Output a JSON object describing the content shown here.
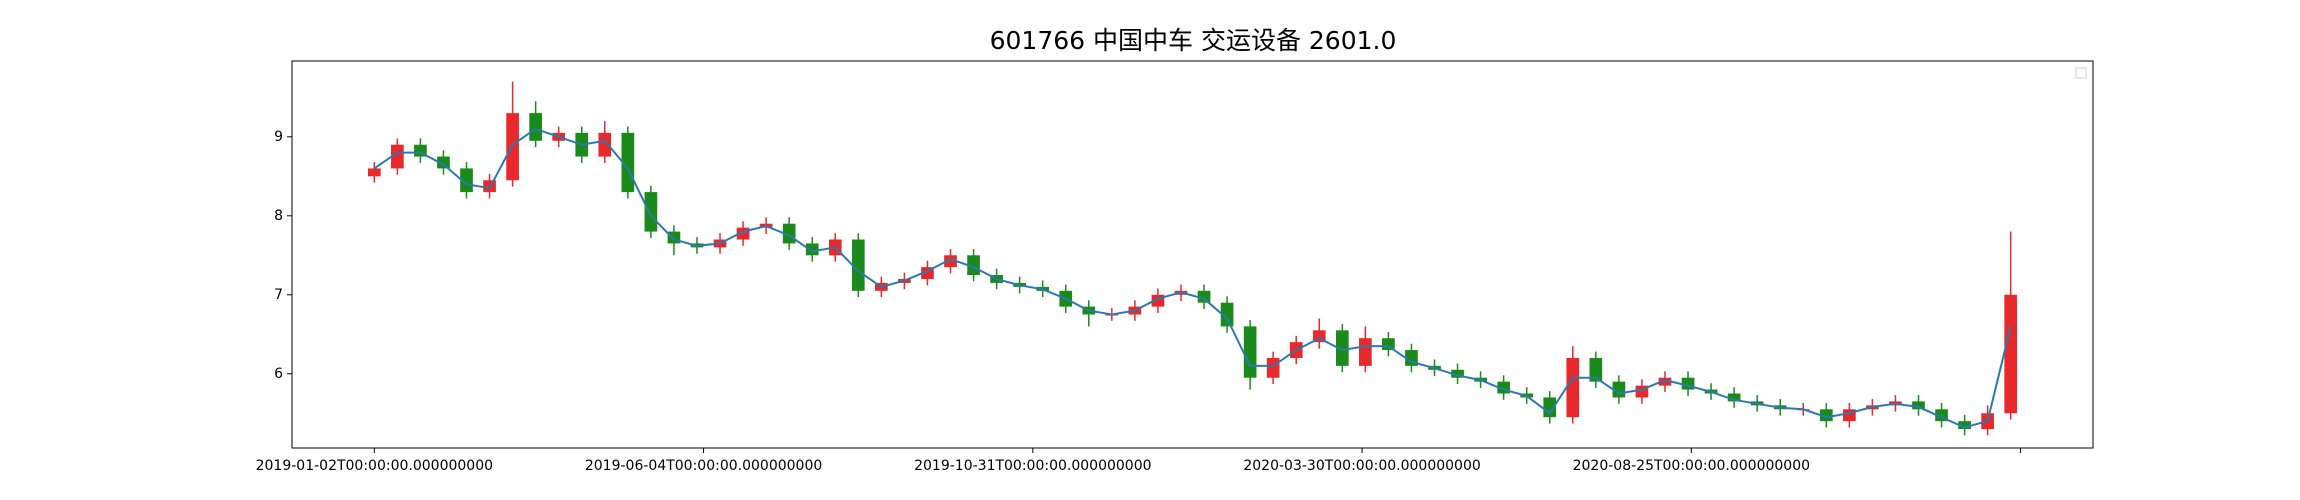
{
  "chart_data": {
    "type": "candlestick",
    "title": "601766 中国中车 交运设备 2601.0",
    "up_color": "#e8282b",
    "down_color": "#1a8a1a",
    "line_color": "#2a7ab0",
    "x": [
      0,
      7,
      14,
      21,
      28,
      35,
      42,
      49,
      56,
      63,
      70,
      77,
      84,
      91,
      98,
      105,
      112,
      119,
      126,
      133,
      140,
      147,
      154,
      161,
      168,
      175,
      182,
      189,
      196,
      203,
      210,
      217,
      224,
      231,
      238,
      245,
      252,
      259,
      266,
      273,
      280,
      287,
      294,
      301,
      308,
      315,
      322,
      329,
      336,
      343,
      350,
      357,
      364,
      371,
      378,
      385,
      392,
      399,
      406,
      413,
      420,
      427,
      434,
      441,
      448,
      455,
      462,
      469,
      476,
      483,
      490,
      497
    ],
    "open": [
      8.5,
      8.6,
      8.9,
      8.75,
      8.6,
      8.3,
      8.45,
      9.3,
      8.95,
      9.05,
      8.75,
      9.05,
      8.3,
      7.8,
      7.65,
      7.6,
      7.7,
      7.85,
      7.9,
      7.65,
      7.5,
      7.7,
      7.05,
      7.15,
      7.2,
      7.35,
      7.5,
      7.25,
      7.15,
      7.1,
      7.05,
      6.85,
      6.75,
      6.75,
      6.85,
      7.0,
      7.05,
      6.9,
      6.6,
      5.95,
      6.2,
      6.4,
      6.55,
      6.1,
      6.45,
      6.3,
      6.1,
      6.05,
      5.95,
      5.9,
      5.75,
      5.7,
      5.45,
      6.2,
      5.9,
      5.7,
      5.85,
      5.95,
      5.8,
      5.75,
      5.65,
      5.6,
      5.55,
      5.55,
      5.4,
      5.55,
      5.6,
      5.65,
      5.55,
      5.4,
      5.3,
      5.5
    ],
    "high": [
      8.68,
      8.98,
      8.98,
      8.83,
      8.68,
      8.53,
      9.7,
      9.45,
      9.13,
      9.13,
      9.2,
      9.13,
      8.38,
      7.88,
      7.73,
      7.78,
      7.93,
      7.98,
      7.98,
      7.73,
      7.78,
      7.78,
      7.23,
      7.28,
      7.43,
      7.58,
      7.58,
      7.33,
      7.23,
      7.18,
      7.13,
      6.93,
      6.83,
      6.93,
      7.08,
      7.13,
      7.13,
      6.98,
      6.68,
      6.28,
      6.48,
      6.7,
      6.63,
      6.6,
      6.53,
      6.38,
      6.18,
      6.13,
      6.03,
      5.98,
      5.83,
      5.78,
      6.35,
      6.28,
      5.98,
      5.93,
      6.03,
      6.03,
      5.88,
      5.83,
      5.73,
      5.68,
      5.63,
      5.63,
      5.63,
      5.68,
      5.73,
      5.73,
      5.63,
      5.48,
      5.6,
      7.8
    ],
    "low": [
      8.42,
      8.52,
      8.67,
      8.52,
      8.22,
      8.22,
      8.37,
      8.87,
      8.87,
      8.67,
      8.67,
      8.22,
      7.72,
      7.5,
      7.52,
      7.52,
      7.62,
      7.77,
      7.57,
      7.42,
      7.42,
      6.97,
      6.97,
      7.07,
      7.12,
      7.27,
      7.17,
      7.07,
      7.02,
      6.97,
      6.77,
      6.6,
      6.67,
      6.67,
      6.77,
      6.92,
      6.82,
      6.52,
      5.8,
      5.87,
      6.12,
      6.32,
      6.02,
      6.02,
      6.22,
      6.02,
      5.97,
      5.87,
      5.82,
      5.67,
      5.62,
      5.37,
      5.37,
      5.82,
      5.62,
      5.62,
      5.77,
      5.72,
      5.67,
      5.57,
      5.52,
      5.47,
      5.47,
      5.32,
      5.32,
      5.47,
      5.52,
      5.47,
      5.32,
      5.22,
      5.22,
      5.42
    ],
    "close": [
      8.6,
      8.9,
      8.75,
      8.6,
      8.3,
      8.45,
      9.3,
      8.95,
      9.05,
      8.75,
      9.05,
      8.3,
      7.8,
      7.65,
      7.6,
      7.7,
      7.85,
      7.9,
      7.65,
      7.5,
      7.7,
      7.05,
      7.15,
      7.2,
      7.35,
      7.5,
      7.25,
      7.15,
      7.1,
      7.05,
      6.85,
      6.75,
      6.75,
      6.85,
      7.0,
      7.05,
      6.9,
      6.6,
      5.95,
      6.2,
      6.4,
      6.55,
      6.1,
      6.45,
      6.3,
      6.1,
      6.05,
      5.95,
      5.9,
      5.75,
      5.7,
      5.45,
      6.2,
      5.9,
      5.7,
      5.85,
      5.95,
      5.8,
      5.75,
      5.65,
      5.6,
      5.55,
      5.55,
      5.4,
      5.55,
      5.6,
      5.65,
      5.55,
      5.4,
      5.3,
      5.5,
      7.0
    ],
    "line": [
      8.6,
      8.8,
      8.8,
      8.65,
      8.4,
      8.35,
      8.9,
      9.1,
      9.0,
      8.9,
      8.95,
      8.6,
      8.0,
      7.7,
      7.62,
      7.65,
      7.8,
      7.87,
      7.75,
      7.55,
      7.6,
      7.3,
      7.1,
      7.18,
      7.3,
      7.45,
      7.35,
      7.2,
      7.12,
      7.07,
      6.95,
      6.8,
      6.75,
      6.8,
      6.95,
      7.03,
      6.95,
      6.7,
      6.1,
      6.1,
      6.3,
      6.45,
      6.3,
      6.35,
      6.35,
      6.15,
      6.07,
      5.98,
      5.92,
      5.8,
      5.72,
      5.5,
      5.95,
      5.95,
      5.75,
      5.8,
      5.92,
      5.85,
      5.77,
      5.67,
      5.62,
      5.57,
      5.55,
      5.45,
      5.5,
      5.58,
      5.62,
      5.58,
      5.45,
      5.32,
      5.4,
      6.6
    ],
    "xlim": [
      -25,
      522
    ],
    "xticks": [
      {
        "value": 0,
        "label": "2019-01-02T00:00:00.000000000"
      },
      {
        "value": 100,
        "label": "2019-06-04T00:00:00.000000000"
      },
      {
        "value": 200,
        "label": "2019-10-31T00:00:00.000000000"
      },
      {
        "value": 300,
        "label": "2020-03-30T00:00:00.000000000"
      },
      {
        "value": 400,
        "label": "2020-08-25T00:00:00.000000000"
      },
      {
        "value": 500,
        "label": null
      }
    ],
    "ylim": [
      5.06,
      9.96
    ],
    "yticks": [
      6,
      7,
      8,
      9
    ]
  }
}
